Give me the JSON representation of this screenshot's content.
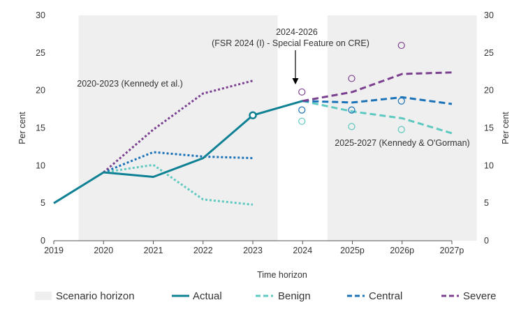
{
  "chart_data": {
    "type": "line",
    "xlabel": "Time horizon",
    "ylabel_left": "Per cent",
    "ylabel_right": "Per cent",
    "ylim": [
      0,
      30
    ],
    "yticks": [
      0,
      5,
      10,
      15,
      20,
      25,
      30
    ],
    "categories": [
      "2019",
      "2020",
      "2021",
      "2022",
      "2023",
      "2024",
      "2025p",
      "2026p",
      "2027p"
    ],
    "colors": {
      "actual": "#0f8194",
      "benign": "#5dc9c0",
      "central": "#1a72b8",
      "severe": "#7b3f8f",
      "shade": "#efefef"
    },
    "shaded_regions": [
      {
        "from": 2019.5,
        "to": 2023.5
      },
      {
        "from": 2024.5,
        "to": 2027.5
      }
    ],
    "actual": {
      "name": "Actual",
      "points": [
        [
          2019,
          5.0
        ],
        [
          2020,
          9.1
        ],
        [
          2021,
          8.5
        ],
        [
          2022,
          11.0
        ],
        [
          2023,
          16.7
        ],
        [
          2024,
          18.6
        ]
      ],
      "marker": [
        2023,
        16.7
      ]
    },
    "series_2020_2023": [
      {
        "key": "benign",
        "points": [
          [
            2020,
            9.1
          ],
          [
            2021,
            10.1
          ],
          [
            2022,
            5.5
          ],
          [
            2023,
            4.8
          ]
        ]
      },
      {
        "key": "central",
        "points": [
          [
            2020,
            9.1
          ],
          [
            2021,
            11.8
          ],
          [
            2022,
            11.2
          ],
          [
            2023,
            11.0
          ]
        ]
      },
      {
        "key": "severe",
        "points": [
          [
            2020,
            9.1
          ],
          [
            2021,
            14.8
          ],
          [
            2022,
            19.6
          ],
          [
            2023,
            21.3
          ]
        ]
      }
    ],
    "series_2025_2027": [
      {
        "key": "benign",
        "points": [
          [
            2024,
            18.6
          ],
          [
            2025,
            17.2
          ],
          [
            2026,
            16.3
          ],
          [
            2027,
            14.3
          ]
        ]
      },
      {
        "key": "central",
        "points": [
          [
            2024,
            18.6
          ],
          [
            2025,
            18.4
          ],
          [
            2026,
            19.1
          ],
          [
            2027,
            18.2
          ]
        ]
      },
      {
        "key": "severe",
        "points": [
          [
            2024,
            18.6
          ],
          [
            2025,
            19.8
          ],
          [
            2026,
            22.2
          ],
          [
            2027,
            22.4
          ]
        ]
      }
    ],
    "fsr_circles": [
      {
        "key": "severe",
        "points": [
          [
            2024,
            19.8
          ],
          [
            2025,
            21.6
          ],
          [
            2026,
            26.0
          ]
        ]
      },
      {
        "key": "central",
        "points": [
          [
            2024,
            17.4
          ],
          [
            2025,
            17.4
          ],
          [
            2026,
            18.6
          ]
        ]
      },
      {
        "key": "benign",
        "points": [
          [
            2024,
            15.9
          ],
          [
            2025,
            15.2
          ],
          [
            2026,
            14.8
          ]
        ]
      }
    ],
    "annotations": {
      "kennedy_2020": "2020-2023 (Kennedy et al.)",
      "fsr_line1": "2024-2026",
      "fsr_line2": "(FSR 2024 (I) - Special Feature on CRE)",
      "kennedy_2025": "2025-2027 (Kennedy & O'Gorman)"
    },
    "legend": [
      {
        "key": "shade",
        "label": "Scenario horizon"
      },
      {
        "key": "actual",
        "label": "Actual"
      },
      {
        "key": "benign",
        "label": "Benign"
      },
      {
        "key": "central",
        "label": "Central"
      },
      {
        "key": "severe",
        "label": "Severe"
      }
    ]
  }
}
